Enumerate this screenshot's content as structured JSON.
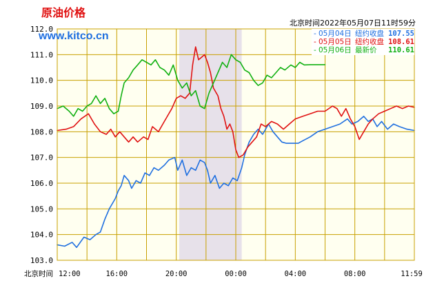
{
  "header": {
    "title": "原油价格",
    "site": "www.kitco.cn",
    "timestamp": "北京时间2022年05月07日11时59分"
  },
  "colors": {
    "plot_bg": "#fffff0",
    "grid": "#c8a000",
    "shade": "#e7e1ea",
    "blue": "#1f6fe0",
    "red": "#e01010",
    "green": "#10b010",
    "title_red": "#e01010",
    "site_blue": "#1f6fe0"
  },
  "legend": [
    {
      "date": "05月04日",
      "label": "纽约收盘",
      "value": "107.55",
      "color": "#1f6fe0"
    },
    {
      "date": "05月05日",
      "label": "纽约收盘",
      "value": "108.61",
      "color": "#e01010"
    },
    {
      "date": "05月06日",
      "label": "最新价",
      "value": "110.61",
      "color": "#10b010"
    }
  ],
  "chart_data": {
    "type": "line",
    "xlabel": "北京时间",
    "x_ticks": [
      "12:00",
      "16:00",
      "20:00",
      "00:00",
      "04:00",
      "08:00",
      "11:59"
    ],
    "y_ticks": [
      "112.0",
      "111.0",
      "110.0",
      "109.0",
      "108.0",
      "107.0",
      "106.0",
      "105.0",
      "104.0",
      "103.0"
    ],
    "ylim": [
      103.0,
      112.0
    ],
    "x_range_hours": [
      0,
      24
    ],
    "shaded_region_hours": [
      8.2,
      12.4
    ],
    "grid": true,
    "legend_position": "top-right",
    "series": [
      {
        "name": "05月04日 纽约收盘",
        "color": "#1f6fe0",
        "points": [
          [
            0.0,
            103.6
          ],
          [
            0.5,
            103.55
          ],
          [
            1.0,
            103.7
          ],
          [
            1.3,
            103.5
          ],
          [
            1.8,
            103.9
          ],
          [
            2.2,
            103.8
          ],
          [
            2.6,
            104.0
          ],
          [
            2.9,
            104.1
          ],
          [
            3.2,
            104.6
          ],
          [
            3.5,
            105.0
          ],
          [
            3.9,
            105.4
          ],
          [
            4.1,
            105.7
          ],
          [
            4.3,
            105.9
          ],
          [
            4.5,
            106.3
          ],
          [
            4.8,
            106.1
          ],
          [
            5.0,
            105.8
          ],
          [
            5.3,
            106.1
          ],
          [
            5.6,
            106.0
          ],
          [
            5.9,
            106.4
          ],
          [
            6.2,
            106.3
          ],
          [
            6.5,
            106.6
          ],
          [
            6.8,
            106.5
          ],
          [
            7.2,
            106.7
          ],
          [
            7.5,
            106.9
          ],
          [
            7.9,
            107.0
          ],
          [
            8.1,
            106.5
          ],
          [
            8.4,
            106.9
          ],
          [
            8.7,
            106.3
          ],
          [
            9.0,
            106.6
          ],
          [
            9.3,
            106.5
          ],
          [
            9.6,
            106.9
          ],
          [
            9.9,
            106.8
          ],
          [
            10.1,
            106.5
          ],
          [
            10.3,
            106.0
          ],
          [
            10.6,
            106.3
          ],
          [
            10.9,
            105.8
          ],
          [
            11.2,
            106.0
          ],
          [
            11.5,
            105.9
          ],
          [
            11.8,
            106.2
          ],
          [
            12.1,
            106.1
          ],
          [
            12.4,
            106.6
          ],
          [
            12.6,
            107.1
          ],
          [
            12.9,
            107.6
          ],
          [
            13.2,
            107.9
          ],
          [
            13.5,
            108.1
          ],
          [
            13.8,
            107.9
          ],
          [
            14.2,
            108.3
          ],
          [
            14.5,
            108.0
          ],
          [
            14.8,
            107.8
          ],
          [
            15.1,
            107.6
          ],
          [
            15.4,
            107.55
          ],
          [
            16.2,
            107.55
          ],
          [
            16.5,
            107.65
          ],
          [
            17.0,
            107.8
          ],
          [
            17.5,
            108.0
          ],
          [
            18.0,
            108.1
          ],
          [
            18.5,
            108.2
          ],
          [
            19.0,
            108.3
          ],
          [
            19.5,
            108.5
          ],
          [
            19.8,
            108.3
          ],
          [
            20.2,
            108.4
          ],
          [
            20.6,
            108.6
          ],
          [
            20.9,
            108.4
          ],
          [
            21.2,
            108.5
          ],
          [
            21.5,
            108.2
          ],
          [
            21.8,
            108.4
          ],
          [
            22.2,
            108.1
          ],
          [
            22.6,
            108.3
          ],
          [
            23.0,
            108.2
          ],
          [
            23.5,
            108.1
          ],
          [
            24.0,
            108.05
          ]
        ]
      },
      {
        "name": "05月05日 纽约收盘",
        "color": "#e01010",
        "points": [
          [
            0.0,
            108.05
          ],
          [
            0.6,
            108.1
          ],
          [
            1.1,
            108.2
          ],
          [
            1.6,
            108.5
          ],
          [
            2.1,
            108.7
          ],
          [
            2.5,
            108.3
          ],
          [
            2.9,
            108.0
          ],
          [
            3.3,
            107.9
          ],
          [
            3.6,
            108.1
          ],
          [
            3.9,
            107.8
          ],
          [
            4.2,
            108.0
          ],
          [
            4.5,
            107.8
          ],
          [
            4.8,
            107.6
          ],
          [
            5.1,
            107.8
          ],
          [
            5.4,
            107.6
          ],
          [
            5.8,
            107.8
          ],
          [
            6.1,
            107.7
          ],
          [
            6.4,
            108.2
          ],
          [
            6.8,
            108.0
          ],
          [
            7.1,
            108.3
          ],
          [
            7.4,
            108.6
          ],
          [
            7.7,
            108.9
          ],
          [
            8.0,
            109.3
          ],
          [
            8.3,
            109.4
          ],
          [
            8.6,
            109.3
          ],
          [
            8.9,
            109.5
          ],
          [
            9.1,
            110.6
          ],
          [
            9.3,
            111.3
          ],
          [
            9.5,
            110.8
          ],
          [
            9.7,
            110.9
          ],
          [
            9.9,
            111.0
          ],
          [
            10.1,
            110.7
          ],
          [
            10.3,
            110.3
          ],
          [
            10.5,
            109.7
          ],
          [
            10.8,
            109.4
          ],
          [
            11.0,
            108.9
          ],
          [
            11.2,
            108.6
          ],
          [
            11.4,
            108.1
          ],
          [
            11.6,
            108.3
          ],
          [
            11.8,
            108.0
          ],
          [
            12.0,
            107.3
          ],
          [
            12.2,
            107.0
          ],
          [
            12.5,
            107.1
          ],
          [
            12.8,
            107.4
          ],
          [
            13.1,
            107.6
          ],
          [
            13.4,
            107.8
          ],
          [
            13.7,
            108.3
          ],
          [
            14.0,
            108.2
          ],
          [
            14.4,
            108.4
          ],
          [
            14.8,
            108.3
          ],
          [
            15.2,
            108.1
          ],
          [
            15.6,
            108.3
          ],
          [
            16.0,
            108.5
          ],
          [
            16.5,
            108.6
          ],
          [
            17.0,
            108.7
          ],
          [
            17.5,
            108.8
          ],
          [
            18.0,
            108.8
          ],
          [
            18.5,
            109.0
          ],
          [
            18.8,
            108.9
          ],
          [
            19.1,
            108.6
          ],
          [
            19.4,
            108.9
          ],
          [
            19.7,
            108.5
          ],
          [
            20.0,
            108.2
          ],
          [
            20.3,
            107.7
          ],
          [
            20.6,
            108.0
          ],
          [
            20.9,
            108.3
          ],
          [
            21.2,
            108.5
          ],
          [
            21.6,
            108.7
          ],
          [
            22.0,
            108.8
          ],
          [
            22.4,
            108.9
          ],
          [
            22.8,
            109.0
          ],
          [
            23.2,
            108.9
          ],
          [
            23.6,
            109.0
          ],
          [
            24.0,
            108.95
          ]
        ]
      },
      {
        "name": "05月06日 最新价",
        "color": "#10b010",
        "points": [
          [
            0.0,
            108.9
          ],
          [
            0.4,
            109.0
          ],
          [
            0.8,
            108.8
          ],
          [
            1.1,
            108.6
          ],
          [
            1.4,
            108.9
          ],
          [
            1.7,
            108.8
          ],
          [
            2.0,
            109.0
          ],
          [
            2.3,
            109.1
          ],
          [
            2.6,
            109.4
          ],
          [
            2.9,
            109.1
          ],
          [
            3.2,
            109.3
          ],
          [
            3.5,
            108.9
          ],
          [
            3.8,
            108.7
          ],
          [
            4.1,
            108.8
          ],
          [
            4.3,
            109.4
          ],
          [
            4.5,
            109.9
          ],
          [
            4.8,
            110.1
          ],
          [
            5.1,
            110.4
          ],
          [
            5.4,
            110.6
          ],
          [
            5.7,
            110.8
          ],
          [
            6.0,
            110.7
          ],
          [
            6.3,
            110.6
          ],
          [
            6.6,
            110.8
          ],
          [
            6.9,
            110.5
          ],
          [
            7.2,
            110.4
          ],
          [
            7.5,
            110.2
          ],
          [
            7.8,
            110.6
          ],
          [
            8.1,
            110.0
          ],
          [
            8.4,
            109.7
          ],
          [
            8.7,
            109.9
          ],
          [
            9.0,
            109.4
          ],
          [
            9.3,
            109.6
          ],
          [
            9.6,
            109.0
          ],
          [
            9.9,
            108.9
          ],
          [
            10.2,
            109.5
          ],
          [
            10.5,
            109.9
          ],
          [
            10.8,
            110.3
          ],
          [
            11.1,
            110.7
          ],
          [
            11.4,
            110.5
          ],
          [
            11.7,
            111.0
          ],
          [
            12.0,
            110.8
          ],
          [
            12.3,
            110.7
          ],
          [
            12.6,
            110.4
          ],
          [
            12.9,
            110.3
          ],
          [
            13.2,
            110.0
          ],
          [
            13.5,
            109.8
          ],
          [
            13.8,
            109.9
          ],
          [
            14.1,
            110.2
          ],
          [
            14.4,
            110.1
          ],
          [
            14.7,
            110.3
          ],
          [
            15.0,
            110.5
          ],
          [
            15.3,
            110.4
          ],
          [
            15.7,
            110.6
          ],
          [
            16.0,
            110.5
          ],
          [
            16.3,
            110.7
          ],
          [
            16.6,
            110.6
          ],
          [
            17.0,
            110.61
          ],
          [
            18.0,
            110.61
          ]
        ]
      }
    ]
  }
}
